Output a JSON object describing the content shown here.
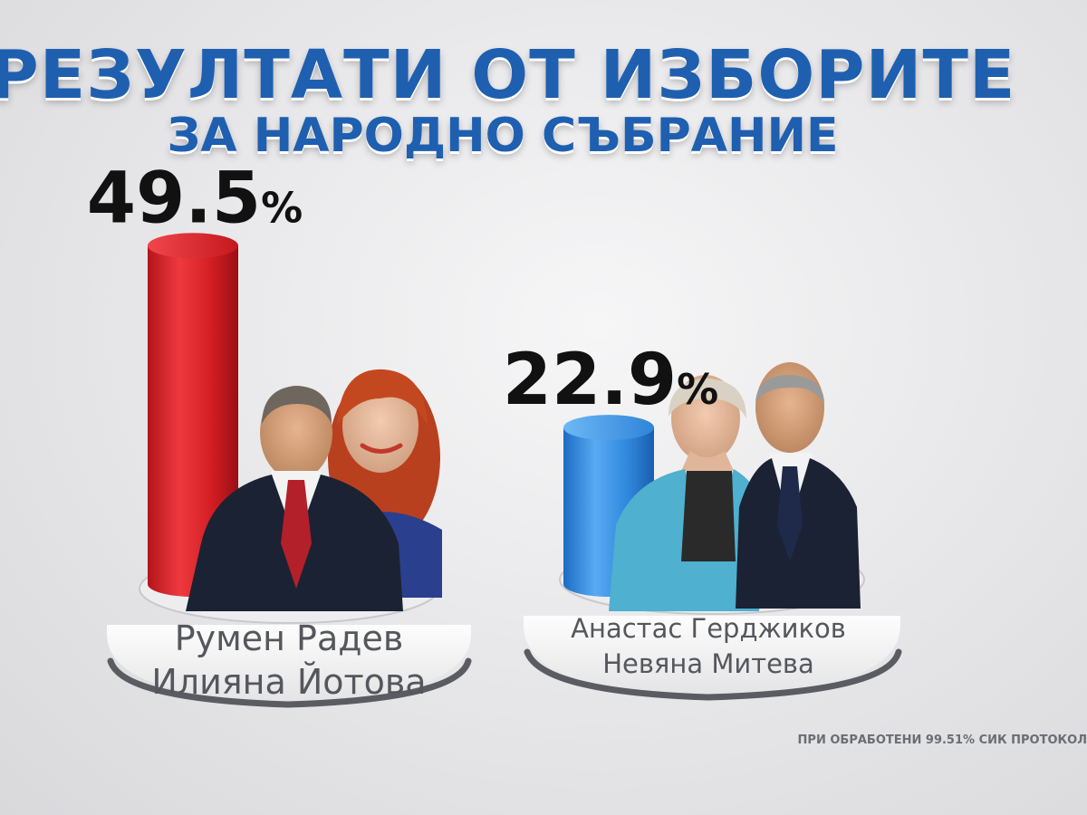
{
  "header": {
    "title": "РЕЗУЛТАТИ ОТ ИЗБОРИТЕ",
    "subtitle": "ЗА НАРОДНО СЪБРАНИЕ"
  },
  "footnote": "ПРИ ОБРАБОТЕНИ 99.51% СИК ПРОТОКОЛ",
  "colors": {
    "title": "#1f5fb0",
    "red_bar": "#e0262b",
    "blue_bar": "#3a8fe0",
    "value_text": "#111111",
    "name_text": "#55575c"
  },
  "chart_data": {
    "type": "bar",
    "title": "РЕЗУЛТАТИ ОТ ИЗБОРИТЕ",
    "subtitle": "ЗА НАРОДНО СЪБРАНИЕ",
    "categories": [
      [
        "Румен Радев",
        "Илияна Йотова"
      ],
      [
        "Анастас Герджиков",
        "Невяна Митева"
      ]
    ],
    "values": [
      49.5,
      22.9
    ],
    "value_labels": [
      "49.5",
      "22.9"
    ],
    "unit": "%",
    "bar_colors": [
      "#e0262b",
      "#3a8fe0"
    ],
    "ylim": [
      0,
      50
    ],
    "grid": false,
    "legend": "none"
  }
}
